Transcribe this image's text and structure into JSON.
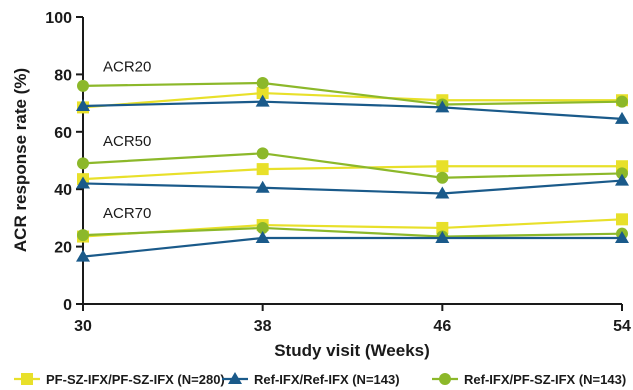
{
  "chart_data": {
    "type": "line",
    "xlabel": "Study visit (Weeks)",
    "ylabel": "ACR response rate (%)",
    "x": [
      30,
      38,
      46,
      54
    ],
    "ylim": [
      0,
      100
    ],
    "yticks": [
      0,
      20,
      40,
      60,
      80,
      100
    ],
    "annotations": [
      {
        "text": "ACR20",
        "x": 30,
        "y": 81
      },
      {
        "text": "ACR50",
        "x": 30,
        "y": 55
      },
      {
        "text": "ACR70",
        "x": 30,
        "y": 30
      }
    ],
    "series": [
      {
        "name": "PF-SZ-IFX/PF-SZ-IFX (N=280)",
        "color": "#e8e02a",
        "marker": "square",
        "group": "ACR20",
        "values": [
          68.5,
          73.5,
          71,
          71
        ]
      },
      {
        "name": "Ref-IFX/Ref-IFX (N=143)",
        "color": "#1a5a8a",
        "marker": "triangle",
        "group": "ACR20",
        "values": [
          69,
          70.5,
          68.5,
          64.5
        ]
      },
      {
        "name": "Ref-IFX/PF-SZ-IFX (N=143)",
        "color": "#8cb82a",
        "marker": "circle",
        "group": "ACR20",
        "values": [
          76,
          77,
          69.5,
          70.5
        ]
      },
      {
        "name": "PF-SZ-IFX/PF-SZ-IFX (N=280)",
        "color": "#e8e02a",
        "marker": "square",
        "group": "ACR50",
        "values": [
          43.5,
          47,
          48,
          48
        ]
      },
      {
        "name": "Ref-IFX/Ref-IFX (N=143)",
        "color": "#1a5a8a",
        "marker": "triangle",
        "group": "ACR50",
        "values": [
          42,
          40.5,
          38.5,
          43
        ]
      },
      {
        "name": "Ref-IFX/PF-SZ-IFX (N=143)",
        "color": "#8cb82a",
        "marker": "circle",
        "group": "ACR50",
        "values": [
          49,
          52.5,
          44,
          45.5
        ]
      },
      {
        "name": "PF-SZ-IFX/PF-SZ-IFX (N=280)",
        "color": "#e8e02a",
        "marker": "square",
        "group": "ACR70",
        "values": [
          23.5,
          27.5,
          26.5,
          29.5
        ]
      },
      {
        "name": "Ref-IFX/Ref-IFX (N=143)",
        "color": "#1a5a8a",
        "marker": "triangle",
        "group": "ACR70",
        "values": [
          16.5,
          23,
          23,
          23
        ]
      },
      {
        "name": "Ref-IFX/PF-SZ-IFX (N=143)",
        "color": "#8cb82a",
        "marker": "circle",
        "group": "ACR70",
        "values": [
          24,
          26.5,
          23.5,
          24.5
        ]
      }
    ],
    "legend": {
      "position": "bottom",
      "items": [
        {
          "label": "PF-SZ-IFX/PF-SZ-IFX (N=280)",
          "color": "#e8e02a",
          "marker": "square"
        },
        {
          "label": "Ref-IFX/Ref-IFX (N=143)",
          "color": "#1a5a8a",
          "marker": "triangle"
        },
        {
          "label": "Ref-IFX/PF-SZ-IFX (N=143)",
          "color": "#8cb82a",
          "marker": "circle"
        }
      ]
    },
    "grid": false
  }
}
